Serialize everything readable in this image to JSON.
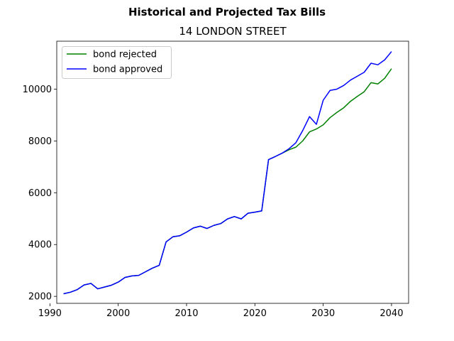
{
  "chart_data": {
    "type": "line",
    "title": "Historical and Projected Tax Bills",
    "subtitle": "14 LONDON STREET",
    "xlabel": "",
    "ylabel": "",
    "xlim": [
      1991,
      2042.5
    ],
    "ylim": [
      1730,
      11850
    ],
    "xticks": [
      1990,
      2000,
      2010,
      2020,
      2030,
      2040
    ],
    "yticks": [
      2000,
      4000,
      6000,
      8000,
      10000
    ],
    "grid": false,
    "legend_position": "top-left",
    "series": [
      {
        "name": "bond rejected",
        "color": "#008000",
        "points": [
          [
            1992,
            2100
          ],
          [
            1993,
            2160
          ],
          [
            1994,
            2260
          ],
          [
            1995,
            2440
          ],
          [
            1996,
            2500
          ],
          [
            1997,
            2290
          ],
          [
            1998,
            2360
          ],
          [
            1999,
            2430
          ],
          [
            2000,
            2550
          ],
          [
            2001,
            2730
          ],
          [
            2002,
            2790
          ],
          [
            2003,
            2810
          ],
          [
            2004,
            2950
          ],
          [
            2005,
            3090
          ],
          [
            2006,
            3200
          ],
          [
            2007,
            4100
          ],
          [
            2008,
            4300
          ],
          [
            2009,
            4340
          ],
          [
            2010,
            4480
          ],
          [
            2011,
            4640
          ],
          [
            2012,
            4710
          ],
          [
            2013,
            4620
          ],
          [
            2014,
            4740
          ],
          [
            2015,
            4810
          ],
          [
            2016,
            4990
          ],
          [
            2017,
            5080
          ],
          [
            2018,
            4990
          ],
          [
            2019,
            5210
          ],
          [
            2020,
            5250
          ],
          [
            2021,
            5300
          ],
          [
            2022,
            7280
          ],
          [
            2023,
            7400
          ],
          [
            2024,
            7530
          ],
          [
            2025,
            7660
          ],
          [
            2026,
            7760
          ],
          [
            2027,
            8000
          ],
          [
            2028,
            8350
          ],
          [
            2029,
            8460
          ],
          [
            2030,
            8620
          ],
          [
            2031,
            8900
          ],
          [
            2032,
            9100
          ],
          [
            2033,
            9280
          ],
          [
            2034,
            9530
          ],
          [
            2035,
            9720
          ],
          [
            2036,
            9900
          ],
          [
            2037,
            10250
          ],
          [
            2038,
            10200
          ],
          [
            2039,
            10420
          ],
          [
            2040,
            10790
          ]
        ]
      },
      {
        "name": "bond approved",
        "color": "#0000ff",
        "points": [
          [
            1992,
            2100
          ],
          [
            1993,
            2160
          ],
          [
            1994,
            2260
          ],
          [
            1995,
            2440
          ],
          [
            1996,
            2500
          ],
          [
            1997,
            2290
          ],
          [
            1998,
            2360
          ],
          [
            1999,
            2430
          ],
          [
            2000,
            2550
          ],
          [
            2001,
            2730
          ],
          [
            2002,
            2790
          ],
          [
            2003,
            2810
          ],
          [
            2004,
            2950
          ],
          [
            2005,
            3090
          ],
          [
            2006,
            3200
          ],
          [
            2007,
            4100
          ],
          [
            2008,
            4300
          ],
          [
            2009,
            4340
          ],
          [
            2010,
            4480
          ],
          [
            2011,
            4640
          ],
          [
            2012,
            4710
          ],
          [
            2013,
            4620
          ],
          [
            2014,
            4740
          ],
          [
            2015,
            4810
          ],
          [
            2016,
            4990
          ],
          [
            2017,
            5080
          ],
          [
            2018,
            4990
          ],
          [
            2019,
            5210
          ],
          [
            2020,
            5250
          ],
          [
            2021,
            5300
          ],
          [
            2022,
            7280
          ],
          [
            2023,
            7400
          ],
          [
            2024,
            7530
          ],
          [
            2025,
            7700
          ],
          [
            2026,
            7930
          ],
          [
            2027,
            8400
          ],
          [
            2028,
            8940
          ],
          [
            2029,
            8640
          ],
          [
            2030,
            9570
          ],
          [
            2031,
            9950
          ],
          [
            2032,
            10000
          ],
          [
            2033,
            10140
          ],
          [
            2034,
            10350
          ],
          [
            2035,
            10500
          ],
          [
            2036,
            10650
          ],
          [
            2037,
            11000
          ],
          [
            2038,
            10940
          ],
          [
            2039,
            11130
          ],
          [
            2040,
            11450
          ]
        ]
      }
    ]
  }
}
